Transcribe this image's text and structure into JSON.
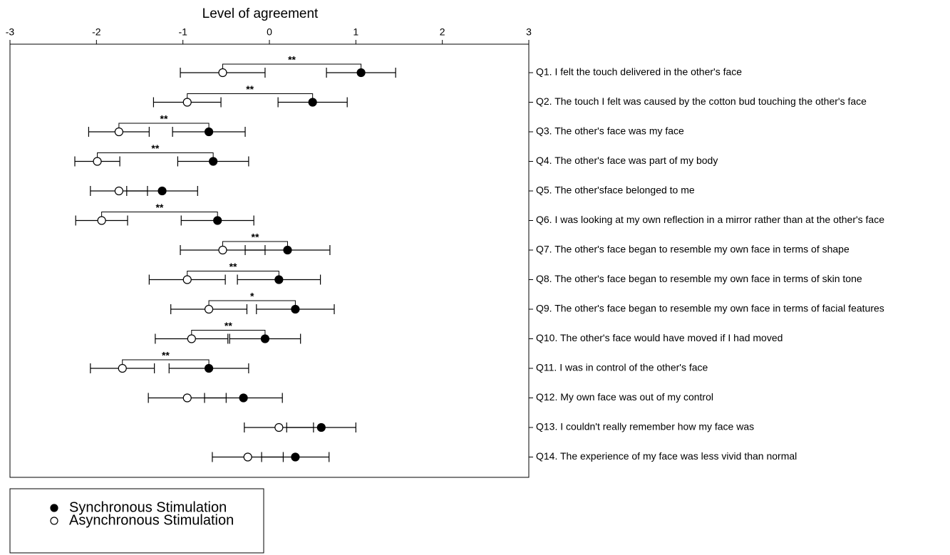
{
  "chart_data": {
    "type": "dot-errorbar",
    "title": "Level of agreement",
    "categories": [
      "Q1. I felt the touch delivered in the other's face",
      "Q2. The touch I felt was caused by the cotton bud touching the other's face",
      "Q3. The other's face was my face",
      "Q4. The other's face was part of my body",
      "Q5. The other'sface belonged to me",
      "Q6. I was looking at my own reflection in a mirror rather than at the other's face",
      "Q7. The other's face began to resemble my own face in terms of shape",
      "Q8. The other's face began to resemble my own face in terms of skin tone",
      "Q9. The other's face began to resemble my own face in terms of facial features",
      "Q10. The other's face would have moved if I had moved",
      "Q11. I was in control of the other's face",
      "Q12. My own face was out of my control",
      "Q13. I couldn't really remember how my face was",
      "Q14. The experience of my face was less vivid than normal"
    ],
    "series": [
      {
        "name": "Synchronous Stimulation",
        "color": "#000000",
        "marker_fill": "#000000",
        "values": [
          1.06,
          0.5,
          -0.7,
          -0.65,
          -1.24,
          -0.6,
          0.21,
          0.11,
          0.3,
          -0.05,
          -0.7,
          -0.3,
          0.6,
          0.3
        ],
        "errors": [
          0.4,
          0.4,
          0.42,
          0.41,
          0.41,
          0.42,
          0.49,
          0.48,
          0.45,
          0.41,
          0.46,
          0.45,
          0.4,
          0.39
        ]
      },
      {
        "name": "Asynchronous Stimulation",
        "color": "#000000",
        "marker_fill": "#ffffff",
        "values": [
          -0.54,
          -0.95,
          -1.74,
          -1.99,
          -1.74,
          -1.94,
          -0.54,
          -0.95,
          -0.7,
          -0.9,
          -1.7,
          -0.95,
          0.11,
          -0.25
        ],
        "errors": [
          0.49,
          0.39,
          0.35,
          0.26,
          0.33,
          0.3,
          0.49,
          0.44,
          0.44,
          0.42,
          0.37,
          0.45,
          0.4,
          0.41
        ]
      }
    ],
    "significance": [
      "**",
      "**",
      "**",
      "**",
      null,
      "**",
      "**",
      "**",
      "*",
      "**",
      "**",
      null,
      null,
      null
    ],
    "xlim": [
      -3,
      3
    ],
    "xticks": [
      -3,
      -2,
      -1,
      0,
      1,
      2,
      3
    ]
  }
}
